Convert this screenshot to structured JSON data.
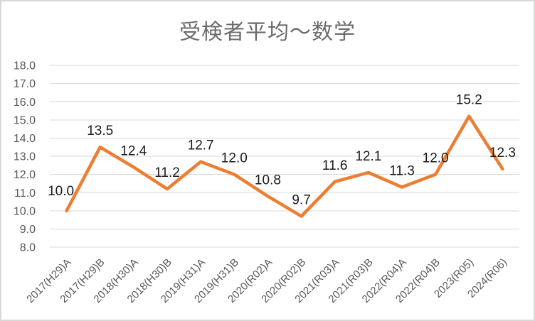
{
  "chart_data": {
    "type": "line",
    "title": "受検者平均～数学",
    "categories": [
      "2017(H29)A",
      "2017(H29)B",
      "2018(H30)A",
      "2018(H30)B",
      "2019(H31)A",
      "2019(H31)B",
      "2020(R02)A",
      "2020(R02)B",
      "2021(R03)A",
      "2021(R03)B",
      "2022(R04)A",
      "2022(R04)B",
      "2023(R05)",
      "2024(R06)"
    ],
    "values": [
      10.0,
      13.5,
      12.4,
      11.2,
      12.7,
      12.0,
      10.8,
      9.7,
      11.6,
      12.1,
      11.3,
      12.0,
      15.2,
      12.3
    ],
    "data_labels": [
      "10.0",
      "13.5",
      "12.4",
      "11.2",
      "12.7",
      "12.0",
      "10.8",
      "9.7",
      "11.6",
      "12.1",
      "11.3",
      "12.0",
      "15.2",
      "12.3"
    ],
    "y_tick_labels": [
      "18.0",
      "17.0",
      "16.0",
      "15.0",
      "14.0",
      "13.0",
      "12.0",
      "11.0",
      "10.0",
      "9.0",
      "8.0"
    ],
    "y_ticks": [
      18,
      17,
      16,
      15,
      14,
      13,
      12,
      11,
      10,
      9,
      8
    ],
    "ylim": [
      8,
      18
    ],
    "xlabel": "",
    "ylabel": "",
    "grid": true,
    "legend": "none",
    "colors": {
      "line": "#ED7D31",
      "gridline": "#D9D9D9",
      "axis_text": "#595959",
      "data_label_text": "#1a1a1a",
      "title_text": "#6b6b6b",
      "background": "#ffffff",
      "border": "#d9d9d9"
    }
  }
}
